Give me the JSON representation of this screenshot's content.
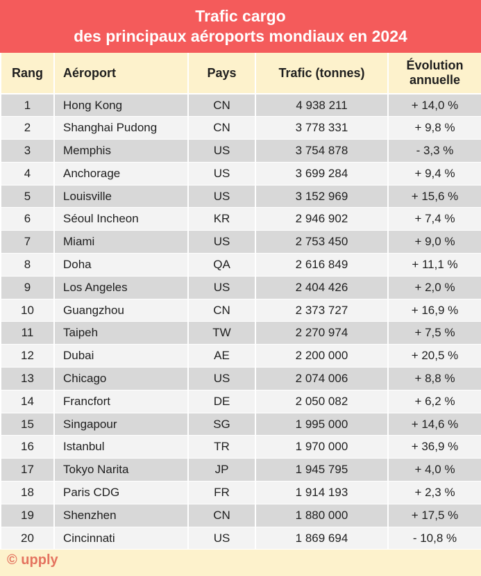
{
  "chart_data": {
    "type": "table",
    "title_line1": "Trafic cargo",
    "title_line2": "des principaux aéroports mondiaux en 2024",
    "columns": [
      "Rang",
      "Aéroport",
      "Pays",
      "Trafic (tonnes)",
      "Évolution annuelle"
    ],
    "rows": [
      [
        "1",
        "Hong Kong",
        "CN",
        "4 938 211",
        "+ 14,0 %"
      ],
      [
        "2",
        "Shanghai Pudong",
        "CN",
        "3 778 331",
        "+ 9,8 %"
      ],
      [
        "3",
        "Memphis",
        "US",
        "3 754 878",
        "- 3,3 %"
      ],
      [
        "4",
        "Anchorage",
        "US",
        "3 699 284",
        "+ 9,4 %"
      ],
      [
        "5",
        "Louisville",
        "US",
        "3 152 969",
        "+ 15,6 %"
      ],
      [
        "6",
        "Séoul Incheon",
        "KR",
        "2 946 902",
        "+ 7,4 %"
      ],
      [
        "7",
        "Miami",
        "US",
        "2 753 450",
        "+ 9,0 %"
      ],
      [
        "8",
        "Doha",
        "QA",
        "2 616 849",
        "+ 11,1 %"
      ],
      [
        "9",
        "Los Angeles",
        "US",
        "2 404 426",
        "+ 2,0 %"
      ],
      [
        "10",
        "Guangzhou",
        "CN",
        "2 373 727",
        "+ 16,9 %"
      ],
      [
        "11",
        "Taipeh",
        "TW",
        "2 270 974",
        "+ 7,5 %"
      ],
      [
        "12",
        "Dubai",
        "AE",
        "2 200 000",
        "+ 20,5 %"
      ],
      [
        "13",
        "Chicago",
        "US",
        "2 074 006",
        "+ 8,8 %"
      ],
      [
        "14",
        "Francfort",
        "DE",
        "2 050 082",
        "+ 6,2 %"
      ],
      [
        "15",
        "Singapour",
        "SG",
        "1 995 000",
        "+ 14,6 %"
      ],
      [
        "16",
        "Istanbul",
        "TR",
        "1 970 000",
        "+ 36,9 %"
      ],
      [
        "17",
        "Tokyo Narita",
        "JP",
        "1 945 795",
        "+ 4,0 %"
      ],
      [
        "18",
        "Paris CDG",
        "FR",
        "1 914 193",
        "+ 2,3 %"
      ],
      [
        "19",
        "Shenzhen",
        "CN",
        "1 880 000",
        "+ 17,5 %"
      ],
      [
        "20",
        "Cincinnati",
        "US",
        "1 869 694",
        "- 10,8 %"
      ]
    ],
    "source": "© upply",
    "colors": {
      "title_bg": "#f45b5b",
      "header_bg": "#fdf2cc",
      "row_dark": "#d8d8d8",
      "row_light": "#f3f3f3",
      "brand": "#e4735f"
    }
  }
}
